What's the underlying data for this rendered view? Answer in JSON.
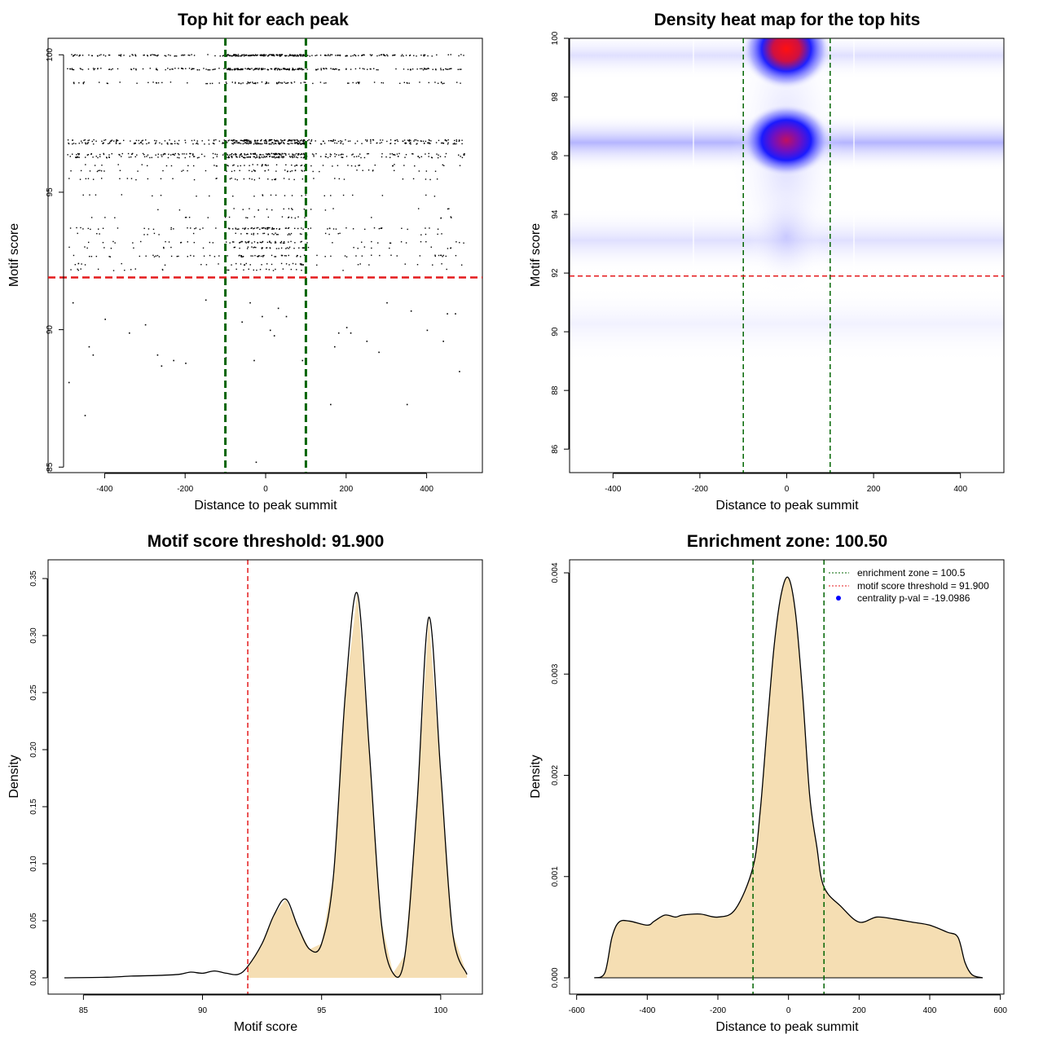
{
  "colors": {
    "threshold": "#e41a1c",
    "zone": "#006400",
    "density_fill": "#f5deb3",
    "pval_marker": "#0000ff"
  },
  "chart_data": [
    {
      "type": "scatter",
      "title": "Top hit for each peak",
      "xlabel": "Distance to peak summit",
      "ylabel": "Motif score",
      "xlim": [
        -500,
        500
      ],
      "ylim": [
        84.8,
        100.6
      ],
      "x_ticks": [
        "-400",
        "-200",
        "0",
        "200",
        "400"
      ],
      "y_ticks": [
        "85",
        "90",
        "95",
        "100"
      ],
      "vlines": [
        -100,
        100
      ],
      "hline": 91.9,
      "bands": [
        {
          "y": 100.0,
          "n": 300
        },
        {
          "y": 99.5,
          "n": 250
        },
        {
          "y": 99.0,
          "n": 100
        },
        {
          "y": 96.9,
          "n": 220
        },
        {
          "y": 96.8,
          "n": 200
        },
        {
          "y": 96.4,
          "n": 180
        },
        {
          "y": 96.3,
          "n": 150
        },
        {
          "y": 96.0,
          "n": 60
        },
        {
          "y": 95.8,
          "n": 50
        },
        {
          "y": 95.5,
          "n": 45
        },
        {
          "y": 94.9,
          "n": 25
        },
        {
          "y": 94.4,
          "n": 20
        },
        {
          "y": 94.1,
          "n": 25
        },
        {
          "y": 93.7,
          "n": 90
        },
        {
          "y": 93.5,
          "n": 40
        },
        {
          "y": 93.2,
          "n": 70
        },
        {
          "y": 93.0,
          "n": 50
        },
        {
          "y": 92.7,
          "n": 80
        },
        {
          "y": 92.4,
          "n": 40
        },
        {
          "y": 92.2,
          "n": 30
        }
      ],
      "scattered_points": [
        [
          -490,
          88.1
        ],
        [
          -450,
          86.9
        ],
        [
          -440,
          89.4
        ],
        [
          -430,
          89.1
        ],
        [
          -340,
          89.9
        ],
        [
          -270,
          89.1
        ],
        [
          -260,
          88.7
        ],
        [
          -230,
          88.9
        ],
        [
          -200,
          88.8
        ],
        [
          -100,
          89.0
        ],
        [
          -60,
          90.3
        ],
        [
          -40,
          91.0
        ],
        [
          -30,
          88.9
        ],
        [
          -25,
          85.2
        ],
        [
          -10,
          90.5
        ],
        [
          10,
          90.0
        ],
        [
          20,
          89.8
        ],
        [
          30,
          90.8
        ],
        [
          50,
          90.5
        ],
        [
          90,
          88.9
        ],
        [
          100,
          90.5
        ],
        [
          160,
          87.3
        ],
        [
          170,
          89.4
        ],
        [
          180,
          89.9
        ],
        [
          200,
          90.1
        ],
        [
          210,
          89.9
        ],
        [
          250,
          89.6
        ],
        [
          280,
          89.2
        ],
        [
          300,
          91.0
        ],
        [
          350,
          87.3
        ],
        [
          360,
          90.7
        ],
        [
          400,
          90.0
        ],
        [
          440,
          89.6
        ],
        [
          450,
          90.6
        ],
        [
          470,
          90.6
        ],
        [
          480,
          88.5
        ],
        [
          -480,
          91.0
        ],
        [
          -400,
          90.4
        ],
        [
          -300,
          90.2
        ],
        [
          -150,
          91.1
        ]
      ]
    },
    {
      "type": "heatmap",
      "title": "Density heat map for the top hits",
      "xlabel": "Distance to peak summit",
      "ylabel": "Motif score",
      "xlim": [
        -500,
        500
      ],
      "ylim": [
        85.2,
        100.0
      ],
      "x_ticks": [
        "-400",
        "-200",
        "0",
        "200",
        "400"
      ],
      "y_ticks": [
        "86",
        "88",
        "90",
        "92",
        "94",
        "96",
        "98",
        "100"
      ],
      "vlines": [
        -100,
        100
      ],
      "hline": 91.9,
      "hotspots": [
        {
          "x": 0,
          "y": 99.6,
          "intensity": 1.0
        },
        {
          "x": 0,
          "y": 96.5,
          "intensity": 0.9
        },
        {
          "x": 0,
          "y": 93.5,
          "intensity": 0.25
        }
      ]
    },
    {
      "type": "area",
      "title": "Motif score threshold: 91.900",
      "xlabel": "Motif score",
      "ylabel": "Density",
      "xlim": [
        84.2,
        101.1
      ],
      "ylim": [
        0,
        0.35
      ],
      "x_ticks": [
        "85",
        "90",
        "95",
        "100"
      ],
      "y_ticks": [
        "0.00",
        "0.05",
        "0.10",
        "0.15",
        "0.20",
        "0.25",
        "0.30",
        "0.35"
      ],
      "vline": 91.9,
      "fill_from": 91.9,
      "x": [
        84.2,
        86,
        87,
        88,
        89,
        89.5,
        90,
        90.5,
        91,
        91.5,
        91.9,
        92.5,
        93,
        93.5,
        94,
        94.5,
        95,
        95.5,
        96,
        96.5,
        97,
        97.5,
        98,
        98.5,
        99,
        99.5,
        100,
        100.5,
        101.1
      ],
      "y": [
        0.0,
        0.0005,
        0.0015,
        0.002,
        0.003,
        0.005,
        0.004,
        0.006,
        0.004,
        0.003,
        0.01,
        0.03,
        0.055,
        0.069,
        0.045,
        0.025,
        0.03,
        0.09,
        0.25,
        0.337,
        0.2,
        0.05,
        0.004,
        0.02,
        0.15,
        0.316,
        0.18,
        0.04,
        0.003
      ]
    },
    {
      "type": "area",
      "title": "Enrichment zone: 100.50",
      "xlabel": "Distance to peak summit",
      "ylabel": "Density",
      "xlim": [
        -620,
        610
      ],
      "ylim": [
        -0.00012,
        0.00415
      ],
      "x_ticks": [
        "-600",
        "-400",
        "-200",
        "0",
        "200",
        "400",
        "600"
      ],
      "y_ticks": [
        "0.000",
        "0.001",
        "0.002",
        "0.003",
        "0.004"
      ],
      "vlines": [
        -100.5,
        100.5
      ],
      "x": [
        -550,
        -520,
        -500,
        -480,
        -450,
        -400,
        -380,
        -350,
        -320,
        -300,
        -250,
        -200,
        -150,
        -100,
        -80,
        -60,
        -40,
        -20,
        0,
        20,
        40,
        60,
        80,
        100,
        150,
        200,
        250,
        300,
        350,
        400,
        450,
        480,
        500,
        520,
        550
      ],
      "y": [
        0.0,
        5e-05,
        0.0004,
        0.00055,
        0.00056,
        0.00052,
        0.00056,
        0.00062,
        0.0006,
        0.00062,
        0.00063,
        0.0006,
        0.00068,
        0.0011,
        0.00165,
        0.0025,
        0.0033,
        0.0038,
        0.00395,
        0.0036,
        0.0028,
        0.0018,
        0.0013,
        0.0009,
        0.0007,
        0.00055,
        0.0006,
        0.00058,
        0.00055,
        0.00052,
        0.00045,
        0.0004,
        0.00015,
        3e-05,
        0.0
      ],
      "legend": [
        {
          "label": "enrichment zone = 100.5",
          "style": "line",
          "color": "#006400"
        },
        {
          "label": "motif score threshold = 91.900",
          "style": "line",
          "color": "#e41a1c"
        },
        {
          "label": "centrality p-val = -19.0986",
          "style": "dot",
          "color": "#0000ff"
        }
      ],
      "legend_position": "top-right"
    }
  ]
}
